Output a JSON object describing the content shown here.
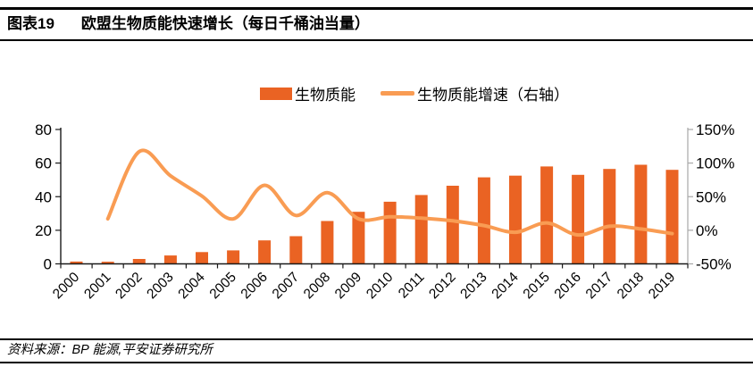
{
  "header": {
    "tag": "图表19",
    "title": "欧盟生物质能快速增长（每日千桶油当量）"
  },
  "legend": [
    {
      "label": "生物质能",
      "type": "bar",
      "color": "#EA6323"
    },
    {
      "label": "生物质能增速（右轴）",
      "type": "line",
      "color": "#F99C53"
    }
  ],
  "footer": {
    "source": "资料来源：BP 能源,平安证券研究所"
  },
  "colors": {
    "bar": "#EA6323",
    "line": "#F99C53",
    "axis_dark": "#1a1a1a",
    "axis_gray": "#A8A8A8"
  },
  "chart_data": {
    "type": "bar",
    "title": "欧盟生物质能快速增长（每日千桶油当量）",
    "categories": [
      "2000",
      "2001",
      "2002",
      "2003",
      "2004",
      "2005",
      "2006",
      "2007",
      "2008",
      "2009",
      "2010",
      "2011",
      "2012",
      "2013",
      "2014",
      "2015",
      "2016",
      "2017",
      "2018",
      "2019"
    ],
    "series": [
      {
        "name": "生物质能",
        "type": "bar",
        "axis": "left",
        "color": "#EA6323",
        "values": [
          1.4,
          1.3,
          2.9,
          5,
          7,
          8,
          14,
          16.5,
          25.5,
          31,
          37,
          41,
          46.5,
          51.5,
          52.5,
          58,
          53,
          56.5,
          59,
          56
        ]
      },
      {
        "name": "生物质能增速（右轴）",
        "type": "line",
        "axis": "right",
        "unit": "%",
        "color": "#F99C53",
        "values": [
          null,
          17,
          117,
          81,
          51,
          17,
          67,
          22,
          56,
          17,
          20,
          18,
          14,
          7,
          -3,
          11,
          -7,
          6,
          2,
          -5
        ]
      }
    ],
    "left_axis": {
      "min": 0,
      "max": 80,
      "ticks": [
        0,
        20,
        40,
        60,
        80
      ]
    },
    "right_axis": {
      "min": -50,
      "max": 150,
      "ticks": [
        -50,
        0,
        50,
        100,
        150
      ],
      "suffix": "%"
    },
    "legend_position": "top",
    "grid": false
  }
}
